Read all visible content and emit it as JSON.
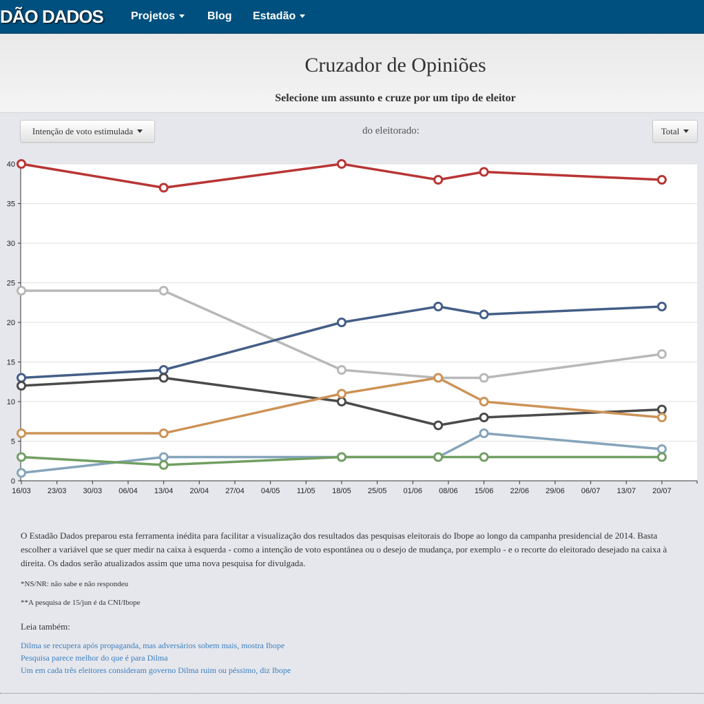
{
  "navbar": {
    "logo_text": "DÃO DADOS",
    "items": [
      {
        "label": "Projetos",
        "has_caret": true
      },
      {
        "label": "Blog",
        "has_caret": false
      },
      {
        "label": "Estadão",
        "has_caret": true
      }
    ]
  },
  "header": {
    "title": "Cruzador de Opiniões",
    "subtitle": "Selecione um assunto e cruze por um tipo de eleitor"
  },
  "controls": {
    "left_dropdown_label": "Intenção de voto estimulada",
    "middle_text": "do eleitorado:",
    "right_dropdown_label": "Total"
  },
  "colors": {
    "navbar": "#00507f",
    "link": "#3a7fc1"
  },
  "chart_data": {
    "type": "line",
    "ylim": [
      0,
      40
    ],
    "y_ticks": [
      0,
      5,
      10,
      15,
      20,
      25,
      30,
      35,
      40
    ],
    "x_ticks": [
      "16/03",
      "23/03",
      "30/03",
      "06/04",
      "13/04",
      "20/04",
      "27/04",
      "04/05",
      "11/05",
      "18/05",
      "25/05",
      "01/06",
      "08/06",
      "15/06",
      "22/06",
      "29/06",
      "06/07",
      "13/07",
      "20/07"
    ],
    "x_dates": [
      "2014-03-16",
      "2014-04-13",
      "2014-05-18",
      "2014-06-06",
      "2014-06-15",
      "2014-07-20"
    ],
    "grid": true,
    "legend": "none",
    "series": [
      {
        "color": "#b93535",
        "values": [
          40,
          37,
          40,
          38,
          39,
          38
        ]
      },
      {
        "color": "#b8b8b8",
        "values": [
          24,
          24,
          14,
          13,
          13,
          16
        ]
      },
      {
        "color": "#445e87",
        "values": [
          13,
          14,
          20,
          22,
          21,
          22
        ]
      },
      {
        "color": "#4a4a4a",
        "values": [
          12,
          13,
          10,
          7,
          8,
          9
        ]
      },
      {
        "color": "#cc9257",
        "values": [
          6,
          6,
          11,
          13,
          10,
          8
        ]
      },
      {
        "color": "#85a4bb",
        "values": [
          1,
          3,
          3,
          3,
          6,
          4
        ]
      },
      {
        "color": "#719f62",
        "values": [
          3,
          2,
          3,
          3,
          3,
          3
        ]
      }
    ]
  },
  "footer": {
    "description": "O Estadão Dados preparou esta ferramenta inédita para facilitar a visualização dos resultados das pesquisas eleitorais do Ibope ao longo da campanha presidencial de 2014. Basta escolher a variável que se quer medir na caixa à esquerda - como a intenção de voto espontânea ou o desejo de mudança, por exemplo - e o recorte do eleitorado desejado na caixa à direita. Os dados serão atualizados assim que uma nova pesquisa for divulgada.",
    "note1": "*NS/NR: não sabe e não respondeu",
    "note2": "**A pesquisa de 15/jun é da CNI/Ibope",
    "read_also_label": "Leia também:",
    "links": [
      "Dilma se recupera após propaganda, mas adversários sobem mais, mostra Ibope",
      "Pesquisa parece melhor do que é para Dilma",
      "Um em cada três eleitores consideram governo Dilma ruim ou péssimo, diz Ibope"
    ]
  }
}
